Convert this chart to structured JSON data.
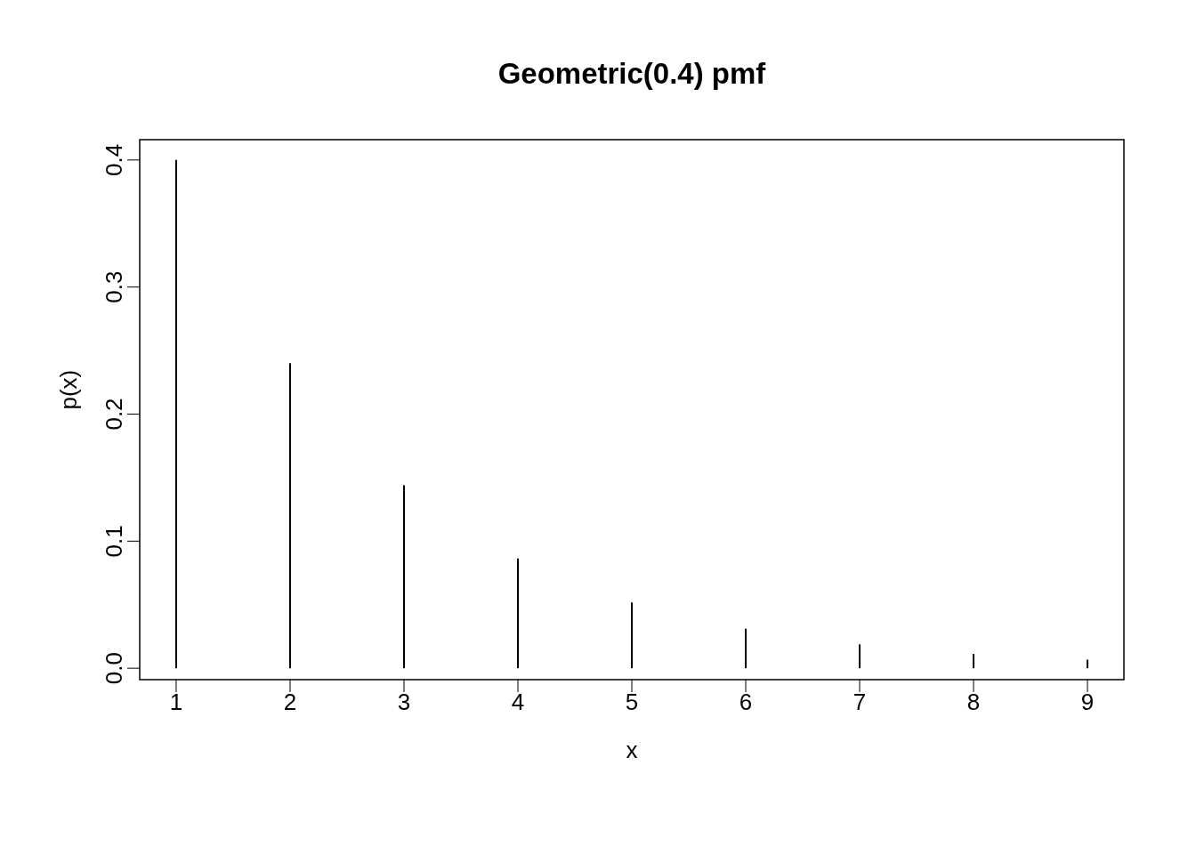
{
  "chart_data": {
    "type": "bar",
    "title": "Geometric(0.4) pmf",
    "xlabel": "x",
    "ylabel": "p(x)",
    "x": [
      1,
      2,
      3,
      4,
      5,
      6,
      7,
      8,
      9
    ],
    "values": [
      0.4,
      0.24,
      0.144,
      0.0864,
      0.0518,
      0.0311,
      0.0187,
      0.0112,
      0.0067
    ],
    "color": "#000000",
    "xlim": [
      0.68,
      9.32
    ],
    "xticks": [
      1,
      2,
      3,
      4,
      5,
      6,
      7,
      8,
      9
    ],
    "ylim": [
      -0.009,
      0.416
    ],
    "yticks": [
      {
        "value": 0,
        "label": "0.0"
      },
      0.1,
      0.2,
      0.3,
      0.4
    ],
    "grid": false,
    "legend": false
  }
}
